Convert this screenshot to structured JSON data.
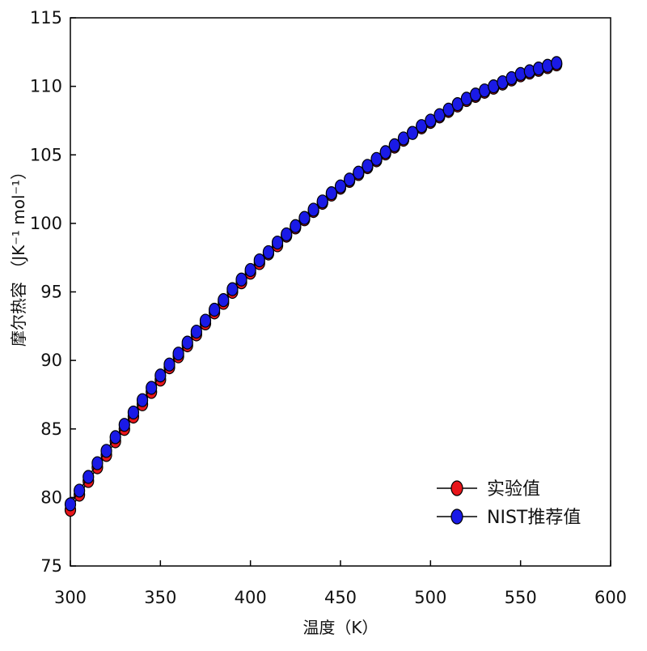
{
  "chart_data": {
    "type": "scatter",
    "title": "",
    "xlabel": "温度（K）",
    "ylabel": "摩尔热容 （JK⁻¹ mol⁻¹）",
    "xlim": [
      300,
      600
    ],
    "ylim": [
      75,
      115
    ],
    "xticks": [
      300,
      350,
      400,
      450,
      500,
      550,
      600
    ],
    "yticks": [
      75,
      80,
      85,
      90,
      95,
      100,
      105,
      110,
      115
    ],
    "grid": false,
    "legend_position": "bottom-right",
    "x": [
      300,
      305,
      310,
      315,
      320,
      325,
      330,
      335,
      340,
      345,
      350,
      355,
      360,
      365,
      370,
      375,
      380,
      385,
      390,
      395,
      400,
      405,
      410,
      415,
      420,
      425,
      430,
      435,
      440,
      445,
      450,
      455,
      460,
      465,
      470,
      475,
      480,
      485,
      490,
      495,
      500,
      505,
      510,
      515,
      520,
      525,
      530,
      535,
      540,
      545,
      550,
      555,
      560,
      565,
      570
    ],
    "series": [
      {
        "name": "实验值",
        "color": "#e8161b",
        "values": [
          79.1,
          80.2,
          81.2,
          82.2,
          83.1,
          84.1,
          85.0,
          85.9,
          86.8,
          87.7,
          88.6,
          89.5,
          90.3,
          91.1,
          91.9,
          92.7,
          93.5,
          94.2,
          95.0,
          95.7,
          96.4,
          97.1,
          97.8,
          98.4,
          99.1,
          99.7,
          100.3,
          100.9,
          101.5,
          102.1,
          102.6,
          103.1,
          103.6,
          104.1,
          104.6,
          105.1,
          105.6,
          106.1,
          106.6,
          107.0,
          107.4,
          107.8,
          108.2,
          108.6,
          109.0,
          109.3,
          109.6,
          109.9,
          110.2,
          110.5,
          110.8,
          111.0,
          111.2,
          111.4,
          111.6
        ]
      },
      {
        "name": "NIST推荐值",
        "color": "#1a1ae6",
        "values": [
          79.5,
          80.5,
          81.5,
          82.5,
          83.4,
          84.4,
          85.3,
          86.2,
          87.1,
          88.0,
          88.9,
          89.7,
          90.5,
          91.3,
          92.1,
          92.9,
          93.7,
          94.4,
          95.2,
          95.9,
          96.6,
          97.3,
          97.9,
          98.6,
          99.2,
          99.8,
          100.4,
          101.0,
          101.6,
          102.2,
          102.7,
          103.2,
          103.7,
          104.2,
          104.7,
          105.2,
          105.7,
          106.2,
          106.6,
          107.1,
          107.5,
          107.9,
          108.3,
          108.7,
          109.1,
          109.4,
          109.7,
          110.0,
          110.3,
          110.6,
          110.9,
          111.1,
          111.3,
          111.5,
          111.7
        ]
      }
    ]
  }
}
